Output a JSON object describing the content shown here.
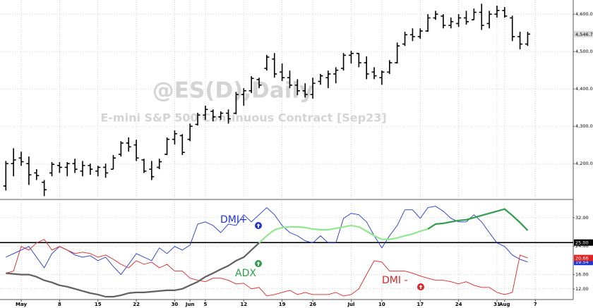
{
  "chart_data": [
    {
      "type": "ohlc",
      "title": "@ES(D),Daily",
      "subtitle": "E-mini S&P 500 Continuous Contract [Sep23]",
      "categories": [
        null,
        null,
        "May",
        null,
        null,
        null,
        null,
        "8",
        null,
        null,
        null,
        null,
        "15",
        null,
        null,
        null,
        null,
        "22",
        null,
        null,
        null,
        null,
        "30",
        null,
        "Jun",
        null,
        "5",
        null,
        null,
        null,
        null,
        "12",
        null,
        null,
        null,
        null,
        "19",
        null,
        null,
        null,
        "26",
        null,
        null,
        null,
        null,
        "Jul",
        null,
        null,
        null,
        "10",
        null,
        null,
        null,
        null,
        "17",
        null,
        null,
        null,
        null,
        "24",
        null,
        null,
        null,
        null,
        "31",
        "Aug",
        null,
        null,
        null,
        "7"
      ],
      "open": [
        4140,
        4200,
        4215,
        4200,
        4175,
        4150,
        4175,
        4195,
        4190,
        4200,
        4180,
        4195,
        4180,
        4190,
        4185,
        4225,
        4255,
        4250,
        4210,
        4185,
        4190,
        4225,
        4265,
        4275,
        4265,
        4305,
        4330,
        4340,
        4325,
        4335,
        4335,
        4385,
        4395,
        4425,
        4455,
        4480,
        4445,
        4430,
        4410,
        4395,
        4385,
        4420,
        4430,
        4440,
        4455,
        4490,
        4495,
        4470,
        4445,
        4430,
        4445,
        4470,
        4520,
        4545,
        4540,
        4555,
        4590,
        4595,
        4570,
        4575,
        4590,
        4585,
        4605,
        4575,
        4600,
        4610,
        4590,
        4540,
        4520,
        null
      ],
      "high": [
        4207,
        4241,
        4232,
        4219,
        4185,
        4156,
        4204,
        4204,
        4204,
        4213,
        4207,
        4200,
        4194,
        4200,
        4223,
        4260,
        4270,
        4264,
        4213,
        4207,
        4213,
        4270,
        4289,
        4279,
        4307,
        4336,
        4355,
        4345,
        4340,
        4345,
        4392,
        4402,
        4434,
        4430,
        4491,
        4496,
        4468,
        4449,
        4426,
        4415,
        4430,
        4440,
        4449,
        4458,
        4496,
        4502,
        4496,
        4487,
        4458,
        4449,
        4477,
        4524,
        4553,
        4562,
        4562,
        4600,
        4609,
        4600,
        4591,
        4600,
        4609,
        4615,
        4628,
        4609,
        4623,
        4619,
        4596,
        4553,
        4553,
        null
      ],
      "low": [
        4128,
        4166,
        4194,
        4143,
        4156,
        4113,
        4166,
        4175,
        4166,
        4175,
        4166,
        4170,
        4166,
        4162,
        4185,
        4219,
        4232,
        4207,
        4175,
        4156,
        4185,
        4223,
        4251,
        4223,
        4260,
        4302,
        4317,
        4313,
        4317,
        4307,
        4332,
        4355,
        4389,
        4402,
        4449,
        4430,
        4421,
        4402,
        4383,
        4377,
        4374,
        4411,
        4402,
        4415,
        4449,
        4468,
        4458,
        4426,
        4426,
        4411,
        4440,
        4468,
        4515,
        4528,
        4534,
        4553,
        4585,
        4562,
        4562,
        4566,
        4572,
        4585,
        4558,
        4562,
        4591,
        4591,
        4528,
        4506,
        4515,
        null
      ],
      "close": [
        4200,
        4210,
        4205,
        4170,
        4168,
        4130,
        4198,
        4190,
        4200,
        4185,
        4195,
        4185,
        4190,
        4175,
        4215,
        4255,
        4245,
        4215,
        4180,
        4165,
        4205,
        4265,
        4280,
        4230,
        4300,
        4330,
        4345,
        4325,
        4335,
        4320,
        4385,
        4395,
        4428,
        4410,
        4485,
        4440,
        4430,
        4410,
        4395,
        4385,
        4415,
        4435,
        4440,
        4450,
        4490,
        4495,
        4470,
        4440,
        4435,
        4445,
        4470,
        4515,
        4545,
        4540,
        4555,
        4590,
        4600,
        4570,
        4580,
        4590,
        4580,
        4605,
        4570,
        4600,
        4610,
        4595,
        4540,
        4520,
        4546.75,
        null
      ],
      "value_labels": [
        null,
        null,
        null,
        null,
        null,
        null,
        null,
        null,
        null,
        null,
        null,
        null,
        null,
        null,
        null,
        null,
        null,
        null,
        null,
        null,
        null,
        null,
        null,
        null,
        null,
        null,
        null,
        null,
        null,
        null,
        null,
        null,
        null,
        null,
        null,
        null,
        null,
        null,
        null,
        null,
        null,
        null,
        null,
        null,
        null,
        null,
        null,
        null,
        null,
        null,
        null,
        null,
        null,
        null,
        null,
        null,
        null,
        null,
        null,
        null,
        null,
        null,
        null,
        null,
        null,
        null,
        null,
        null,
        "4,546.75",
        null
      ],
      "color": "#000000",
      "ylim": [
        4104,
        4638
      ],
      "yticks": [
        {
          "value": 4200,
          "label": "4,200.00"
        },
        {
          "value": 4300,
          "label": "4,300.00"
        },
        {
          "value": 4400,
          "label": "4,400.00"
        },
        {
          "value": 4500,
          "label": "4,500.00"
        },
        {
          "value": 4600,
          "label": "4,600.00"
        }
      ],
      "grid": true
    },
    {
      "type": "line",
      "series": [
        {
          "name": "DMI+",
          "color": "#1f35d6",
          "values": [
            20.9,
            21.9,
            22.9,
            23.9,
            20.9,
            17.9,
            21.9,
            23.9,
            22.9,
            21.5,
            20.9,
            21.3,
            19.9,
            20.9,
            18.3,
            16.0,
            18.9,
            21.9,
            20.9,
            19.9,
            23.5,
            21.9,
            23.9,
            22.9,
            24.3,
            30.2,
            30.8,
            29.8,
            27.8,
            30.2,
            29.8,
            32.8,
            30.8,
            32.8,
            34.8,
            32.8,
            29.8,
            27.8,
            26.9,
            25.5,
            24.9,
            26.9,
            24.9,
            24.9,
            31.8,
            33.2,
            32.8,
            30.8,
            26.9,
            23.5,
            26.9,
            29.8,
            34.2,
            34.2,
            31.8,
            34.8,
            35.2,
            33.8,
            31.8,
            30.8,
            30.8,
            32.8,
            30.8,
            27.8,
            24.9,
            23.9,
            21.5,
            20.3,
            19.54,
            null
          ],
          "value_labels": [
            null,
            null,
            null,
            null,
            null,
            null,
            null,
            null,
            null,
            null,
            null,
            null,
            null,
            null,
            null,
            null,
            null,
            null,
            null,
            null,
            null,
            null,
            null,
            null,
            null,
            null,
            null,
            null,
            null,
            null,
            null,
            null,
            null,
            null,
            null,
            null,
            null,
            null,
            null,
            null,
            null,
            null,
            null,
            null,
            null,
            null,
            null,
            null,
            null,
            null,
            null,
            null,
            null,
            null,
            null,
            null,
            null,
            null,
            null,
            null,
            null,
            null,
            null,
            null,
            null,
            null,
            null,
            null,
            "19.54",
            null
          ]
        },
        {
          "name": "DMI -",
          "color": "#e02424",
          "values": [
            16.4,
            17.0,
            23.9,
            22.9,
            24.9,
            25.9,
            22.9,
            23.9,
            22.9,
            21.9,
            22.3,
            21.9,
            20.9,
            21.5,
            20.3,
            18.9,
            17.9,
            19.9,
            18.9,
            19.5,
            17.9,
            18.9,
            17.0,
            17.0,
            15.0,
            14.4,
            14.0,
            15.0,
            15.0,
            14.4,
            13.4,
            13.6,
            12.0,
            12.4,
            10.0,
            10.4,
            11.0,
            11.6,
            10.4,
            11.0,
            10.4,
            10.4,
            10.4,
            11.0,
            10.0,
            10.4,
            12.0,
            16.0,
            19.9,
            19.5,
            17.0,
            17.0,
            17.0,
            16.4,
            15.6,
            15.0,
            14.4,
            14.4,
            14.0,
            13.4,
            14.0,
            13.0,
            12.4,
            12.4,
            11.0,
            10.4,
            11.0,
            21.5,
            20.66,
            null
          ],
          "value_labels": [
            null,
            null,
            null,
            null,
            null,
            null,
            null,
            null,
            null,
            null,
            null,
            null,
            null,
            null,
            null,
            null,
            null,
            null,
            null,
            null,
            null,
            null,
            null,
            null,
            null,
            null,
            null,
            null,
            null,
            null,
            null,
            null,
            null,
            null,
            null,
            null,
            null,
            null,
            null,
            null,
            null,
            null,
            null,
            null,
            null,
            null,
            null,
            null,
            null,
            null,
            null,
            null,
            null,
            null,
            null,
            null,
            null,
            null,
            null,
            null,
            null,
            null,
            null,
            null,
            null,
            null,
            null,
            null,
            "20.66",
            null
          ]
        },
        {
          "name": "ADX",
          "color": "#2e9e4a",
          "colors": [
            "#606060",
            "#606060",
            "#606060",
            "#606060",
            "#606060",
            "#606060",
            "#606060",
            "#606060",
            "#606060",
            "#606060",
            "#606060",
            "#606060",
            "#606060",
            "#606060",
            "#606060",
            "#606060",
            "#606060",
            "#606060",
            "#606060",
            "#606060",
            "#606060",
            "#606060",
            "#606060",
            "#606060",
            "#606060",
            "#606060",
            "#606060",
            "#606060",
            "#606060",
            "#606060",
            "#606060",
            "#606060",
            "#606060",
            "#606060",
            "#90e890",
            "#90e890",
            "#90e890",
            "#90e890",
            "#90e890",
            "#90e890",
            "#90e890",
            "#90e890",
            "#90e890",
            "#90e890",
            "#90e890",
            "#90e890",
            "#90e890",
            "#90e890",
            "#90e890",
            "#90e890",
            "#90e890",
            "#90e890",
            "#90e890",
            "#90e890",
            "#90e890",
            "#90e890",
            "#2e9e4a",
            "#2e9e4a",
            "#2e9e4a",
            "#2e9e4a",
            "#2e9e4a",
            "#2e9e4a",
            "#2e9e4a",
            "#2e9e4a",
            "#2e9e4a",
            "#2e9e4a",
            "#2e9e4a",
            "#2e9e4a",
            "#2e9e4a",
            "#2e9e4a"
          ],
          "values": [
            16.4,
            16.2,
            16.0,
            16.0,
            15.4,
            14.4,
            13.8,
            13.0,
            12.6,
            12.0,
            11.4,
            10.8,
            10.4,
            9.8,
            9.8,
            10.2,
            10.8,
            11.0,
            11.0,
            11.2,
            11.4,
            11.6,
            11.6,
            12.0,
            13.0,
            14.0,
            15.4,
            16.4,
            17.5,
            18.5,
            19.9,
            20.9,
            22.9,
            24.9,
            26.9,
            28.6,
            29.2,
            29.4,
            29.4,
            29.2,
            28.8,
            28.6,
            28.6,
            29.0,
            29.4,
            29.8,
            29.4,
            28.2,
            26.9,
            25.9,
            25.9,
            26.3,
            26.9,
            27.4,
            28.2,
            28.8,
            30.2,
            30.4,
            30.8,
            31.2,
            31.4,
            32.0,
            32.6,
            33.2,
            33.8,
            34.4,
            32.6,
            30.6,
            28.4,
            null
          ]
        }
      ],
      "reference_line": {
        "value": 25,
        "label": "25.00",
        "color": "#000000"
      },
      "ylim": [
        9,
        37.1
      ],
      "yticks": [
        {
          "value": 12,
          "label": "12.00"
        },
        {
          "value": 16,
          "label": "16.00"
        },
        {
          "value": 24,
          "label": "24.00"
        },
        {
          "value": 32,
          "label": "32.00"
        }
      ],
      "grid": true
    }
  ]
}
